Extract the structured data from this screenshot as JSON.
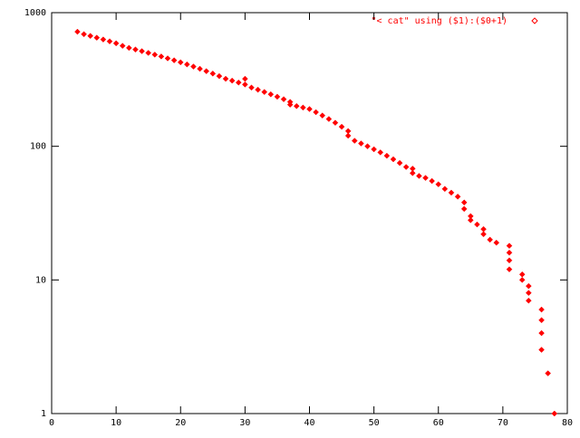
{
  "chart_data": {
    "type": "scatter",
    "series": [
      {
        "name": "\"< cat\" using ($1):($0+1)",
        "color": "#ff0000",
        "x": [
          4,
          5,
          6,
          7,
          8,
          9,
          10,
          11,
          12,
          13,
          14,
          15,
          16,
          17,
          18,
          19,
          20,
          21,
          22,
          23,
          24,
          25,
          26,
          27,
          28,
          29,
          30,
          30,
          31,
          32,
          33,
          34,
          35,
          36,
          37,
          37,
          38,
          39,
          40,
          41,
          42,
          43,
          44,
          45,
          46,
          46,
          47,
          48,
          49,
          50,
          51,
          52,
          53,
          54,
          55,
          56,
          56,
          57,
          58,
          59,
          60,
          61,
          62,
          63,
          64,
          64,
          65,
          65,
          66,
          67,
          67,
          68,
          69,
          71,
          71,
          71,
          71,
          73,
          73,
          74,
          74,
          74,
          76,
          76,
          76,
          76,
          77,
          78
        ],
        "values": [
          720,
          690,
          670,
          650,
          630,
          610,
          590,
          565,
          545,
          530,
          515,
          500,
          485,
          470,
          455,
          440,
          425,
          410,
          395,
          380,
          365,
          350,
          335,
          320,
          310,
          300,
          320,
          290,
          275,
          265,
          255,
          245,
          235,
          225,
          215,
          205,
          200,
          195,
          190,
          180,
          170,
          160,
          150,
          140,
          130,
          120,
          110,
          105,
          100,
          95,
          90,
          85,
          80,
          75,
          70,
          68,
          63,
          60,
          58,
          55,
          52,
          48,
          45,
          42,
          38,
          34,
          30,
          28,
          26,
          24,
          22,
          20,
          19,
          18,
          16,
          14,
          12,
          11,
          10,
          9,
          8,
          7,
          6,
          5,
          4,
          3,
          2,
          1
        ]
      }
    ],
    "xlim": [
      0,
      80
    ],
    "xticks": [
      0,
      10,
      20,
      30,
      40,
      50,
      60,
      70,
      80
    ],
    "ylim": [
      1,
      1000
    ],
    "yticks": [
      1,
      10,
      100,
      1000
    ],
    "log_y": true,
    "legend": "top-right"
  }
}
